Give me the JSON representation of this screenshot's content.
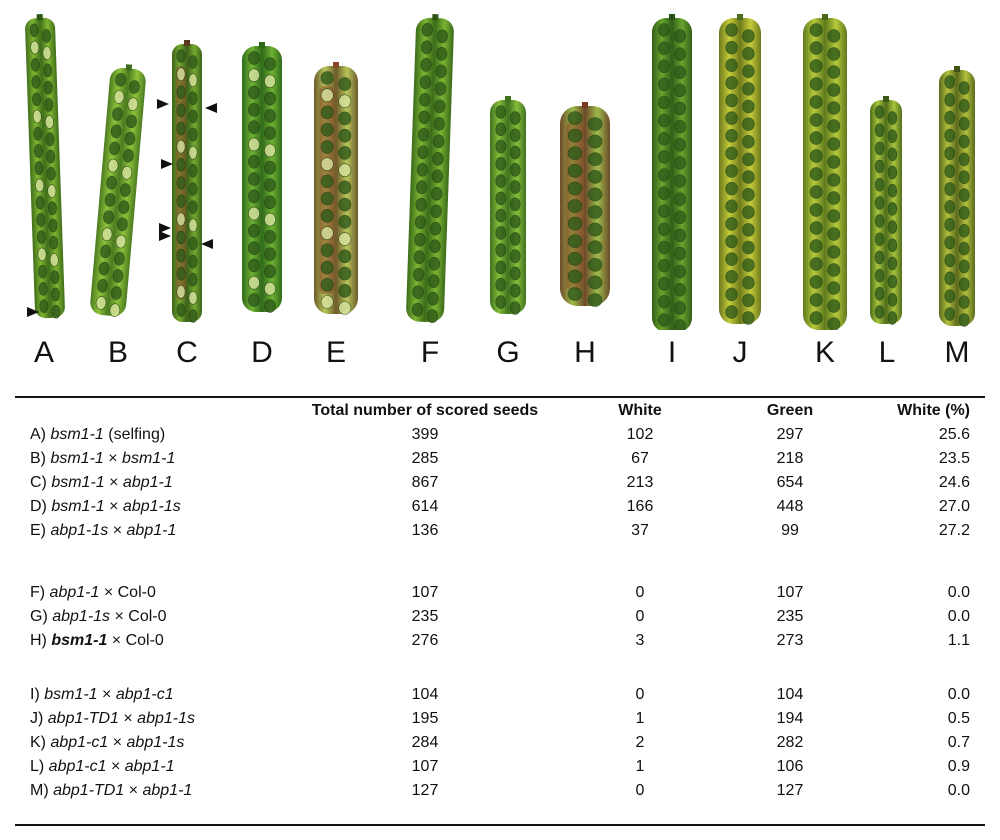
{
  "figure": {
    "panel_letters": [
      "A",
      "B",
      "C",
      "D",
      "E",
      "F",
      "G",
      "H",
      "I",
      "J",
      "K",
      "L",
      "M"
    ],
    "siliques": [
      {
        "letter": "A",
        "base": "#7fb531",
        "edge": "#3f6e1a",
        "tip": "#2d5516",
        "has_arrows": true,
        "tint": "none"
      },
      {
        "letter": "B",
        "base": "#8ec23a",
        "edge": "#4a7a20",
        "tip": "#3e6b1c",
        "has_arrows": false,
        "tint": "none"
      },
      {
        "letter": "C",
        "base": "#76a830",
        "edge": "#3b6219",
        "tip": "#5a3a1e",
        "has_arrows": true,
        "tint": "brown"
      },
      {
        "letter": "D",
        "base": "#6fb233",
        "edge": "#2f6a1a",
        "tip": "#2f6a1a",
        "has_arrows": false,
        "tint": "none"
      },
      {
        "letter": "E",
        "base": "#b7c55a",
        "edge": "#6d5a2a",
        "tip": "#8a4a2a",
        "has_arrows": false,
        "tint": "brown"
      },
      {
        "letter": "F",
        "base": "#7cb432",
        "edge": "#3b6b1a",
        "tip": "#2d5516",
        "has_arrows": false,
        "tint": "none"
      },
      {
        "letter": "G",
        "base": "#86bf3c",
        "edge": "#3f721e",
        "tip": "#3f721e",
        "has_arrows": false,
        "tint": "none"
      },
      {
        "letter": "H",
        "base": "#9cbc4a",
        "edge": "#6e4a2a",
        "tip": "#7a3a22",
        "has_arrows": false,
        "tint": "brown"
      },
      {
        "letter": "I",
        "base": "#6aa52e",
        "edge": "#2f5e18",
        "tip": "#2a4f14",
        "has_arrows": false,
        "tint": "none"
      },
      {
        "letter": "J",
        "base": "#c6cc3a",
        "edge": "#6d7a1c",
        "tip": "#4e6a1c",
        "has_arrows": false,
        "tint": "yellow"
      },
      {
        "letter": "K",
        "base": "#b6c93a",
        "edge": "#5e7a1e",
        "tip": "#4a6a1a",
        "has_arrows": false,
        "tint": "yellow"
      },
      {
        "letter": "L",
        "base": "#a9c43c",
        "edge": "#4e6e1c",
        "tip": "#3a5a16",
        "has_arrows": false,
        "tint": "yellow"
      },
      {
        "letter": "M",
        "base": "#b4c03c",
        "edge": "#5a6a1e",
        "tip": "#3f5216",
        "has_arrows": false,
        "tint": "yellow"
      }
    ]
  },
  "table": {
    "headers": {
      "total": "Total number of scored seeds",
      "white": "White",
      "green": "Green",
      "pct": "White (%)"
    },
    "rows": [
      {
        "label": [
          {
            "t": "A) ",
            "s": "n"
          },
          {
            "t": "bsm1-1",
            "s": "i"
          },
          {
            "t": " (selfing)",
            "s": "n"
          }
        ],
        "total": "399",
        "white": "102",
        "green": "297",
        "pct": "25.6"
      },
      {
        "label": [
          {
            "t": "B) ",
            "s": "n"
          },
          {
            "t": "bsm1-1",
            "s": "i"
          },
          {
            "t": " × ",
            "s": "n"
          },
          {
            "t": "bsm1-1",
            "s": "i"
          }
        ],
        "total": "285",
        "white": "67",
        "green": "218",
        "pct": "23.5"
      },
      {
        "label": [
          {
            "t": "C) ",
            "s": "n"
          },
          {
            "t": "bsm1-1",
            "s": "i"
          },
          {
            "t": " × ",
            "s": "n"
          },
          {
            "t": "abp1-1",
            "s": "i"
          }
        ],
        "total": "867",
        "white": "213",
        "green": "654",
        "pct": "24.6"
      },
      {
        "label": [
          {
            "t": "D) ",
            "s": "n"
          },
          {
            "t": "bsm1-1",
            "s": "i"
          },
          {
            "t": " × ",
            "s": "n"
          },
          {
            "t": "abp1-1s",
            "s": "i"
          }
        ],
        "total": "614",
        "white": "166",
        "green": "448",
        "pct": "27.0"
      },
      {
        "label": [
          {
            "t": "E) ",
            "s": "n"
          },
          {
            "t": "abp1-1s",
            "s": "i"
          },
          {
            "t": " × ",
            "s": "n"
          },
          {
            "t": "abp1-1",
            "s": "i"
          }
        ],
        "total": "136",
        "white": "37",
        "green": "99",
        "pct": "27.2"
      },
      {
        "label": [
          {
            "t": "F) ",
            "s": "n"
          },
          {
            "t": "abp1-1",
            "s": "i"
          },
          {
            "t": " × Col-0",
            "s": "n"
          }
        ],
        "total": "107",
        "white": "0",
        "green": "107",
        "pct": "0.0"
      },
      {
        "label": [
          {
            "t": "G) ",
            "s": "n"
          },
          {
            "t": "abp1-1s",
            "s": "i"
          },
          {
            "t": " × Col-0",
            "s": "n"
          }
        ],
        "total": "235",
        "white": "0",
        "green": "235",
        "pct": "0.0"
      },
      {
        "label": [
          {
            "t": "H) ",
            "s": "n"
          },
          {
            "t": "bsm1-1",
            "s": "b"
          },
          {
            "t": " × Col-0",
            "s": "n"
          }
        ],
        "total": "276",
        "white": "3",
        "green": "273",
        "pct": "1.1"
      },
      {
        "label": [
          {
            "t": "I) ",
            "s": "n"
          },
          {
            "t": "bsm1-1",
            "s": "i"
          },
          {
            "t": " × ",
            "s": "n"
          },
          {
            "t": "abp1-c1",
            "s": "i"
          }
        ],
        "total": "104",
        "white": "0",
        "green": "104",
        "pct": "0.0"
      },
      {
        "label": [
          {
            "t": "J) ",
            "s": "n"
          },
          {
            "t": "abp1-TD1",
            "s": "i"
          },
          {
            "t": " × ",
            "s": "n"
          },
          {
            "t": "abp1-1s",
            "s": "i"
          }
        ],
        "total": "195",
        "white": "1",
        "green": "194",
        "pct": "0.5"
      },
      {
        "label": [
          {
            "t": "K) ",
            "s": "n"
          },
          {
            "t": "abp1-c1",
            "s": "i"
          },
          {
            "t": " × ",
            "s": "n"
          },
          {
            "t": "abp1-1s",
            "s": "i"
          }
        ],
        "total": "284",
        "white": "2",
        "green": "282",
        "pct": "0.7"
      },
      {
        "label": [
          {
            "t": "L) ",
            "s": "n"
          },
          {
            "t": "abp1-c1",
            "s": "i"
          },
          {
            "t": " × ",
            "s": "n"
          },
          {
            "t": "abp1-1",
            "s": "i"
          }
        ],
        "total": "107",
        "white": "1",
        "green": "106",
        "pct": "0.9"
      },
      {
        "label": [
          {
            "t": "M) ",
            "s": "n"
          },
          {
            "t": "abp1-TD1",
            "s": "i"
          },
          {
            "t": " × ",
            "s": "n"
          },
          {
            "t": "abp1-1",
            "s": "i"
          }
        ],
        "total": "127",
        "white": "0",
        "green": "127",
        "pct": "0.0"
      }
    ]
  }
}
